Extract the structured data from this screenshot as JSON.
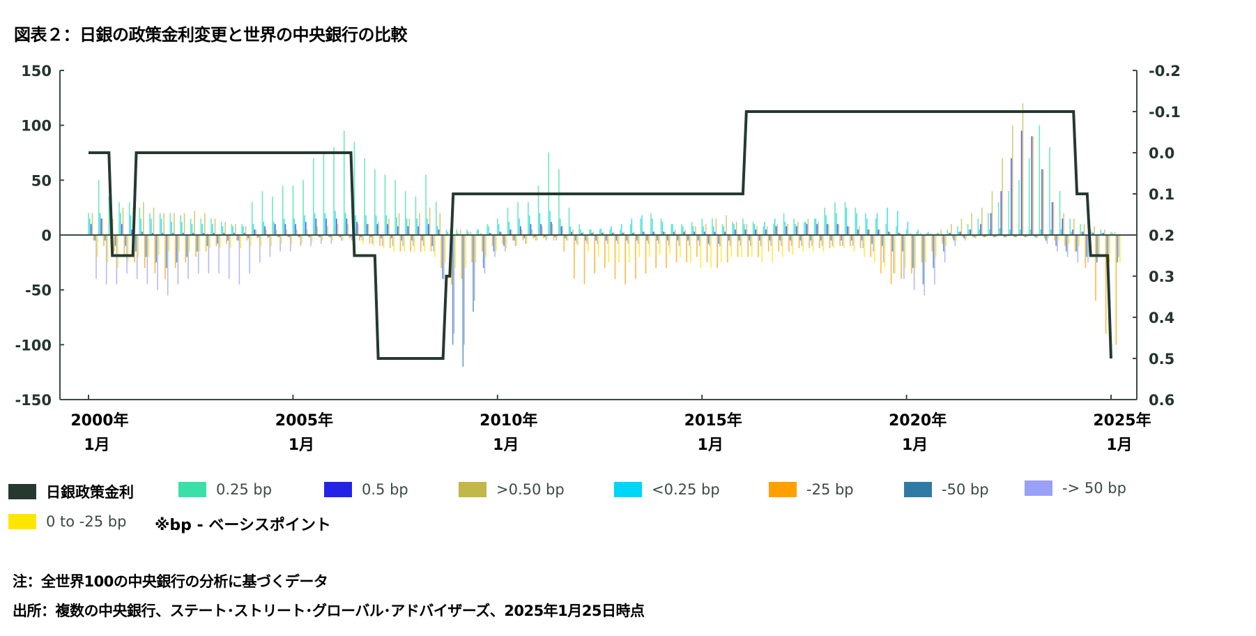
{
  "title": "図表２：日銀の政策金利変更と世界の中央銀行の比較",
  "legend": [
    {
      "label": "日銀政策金利",
      "color": "#25392f"
    },
    {
      "label": "0.25 bp",
      "color": "#3be0a8"
    },
    {
      "label": "0.5 bp",
      "color": "#2323e6"
    },
    {
      "label": ">0.50 bp",
      "color": "#c2b84a"
    },
    {
      "label": "<0.25 bp",
      "color": "#00d6f5"
    },
    {
      "label": "-25 bp",
      "color": "#ffa000"
    },
    {
      "label": "-50 bp",
      "color": "#2f7ba5"
    },
    {
      "label": "-> 50 bp",
      "color": "#9aa0f5"
    },
    {
      "label": "0 to -25 bp",
      "color": "#ffe600"
    }
  ],
  "bp_note": "※bp - ベーシスポイント",
  "notes": [
    "注：全世界100の中央銀行の分析に基づくデータ",
    "出所：複数の中央銀行、ステート･ストリート･グローバル･アドバイザーズ、2025年1月25日時点"
  ],
  "chart_data": {
    "type": "bar",
    "title": "",
    "x_axis": {
      "start": "2000-01",
      "end": "2025-01",
      "tick_labels": [
        [
          "2000年",
          "1月"
        ],
        [
          "2005年",
          "1月"
        ],
        [
          "2010年",
          "1月"
        ],
        [
          "2015年",
          "1月"
        ],
        [
          "2020年",
          "1月"
        ],
        [
          "2025年",
          "1月"
        ]
      ],
      "tick_years": [
        2000,
        2005,
        2010,
        2015,
        2020,
        2025
      ]
    },
    "y_left": {
      "ylim": [
        -150,
        150
      ],
      "ticks": [
        "150",
        "100",
        "50",
        "0",
        "-50",
        "-100",
        "-150"
      ],
      "tick_values": [
        150,
        100,
        50,
        0,
        -50,
        -100,
        -150
      ]
    },
    "y_right": {
      "ylim": [
        -0.2,
        0.6
      ],
      "inverted": true,
      "ticks": [
        "-0.2",
        "-0.1",
        "0.0",
        "0.1",
        "0.2",
        "0.3",
        "0.4",
        "0.5",
        "0.6"
      ],
      "tick_values": [
        -0.2,
        -0.1,
        0.0,
        0.1,
        0.2,
        0.3,
        0.4,
        0.5,
        0.6
      ]
    },
    "grid": false,
    "legend_position": "bottom",
    "bar_period_start": "2000-01",
    "bar_frequency": "quarterly",
    "series": [
      {
        "name": "0.25 bp",
        "color": "#3be0a8",
        "values": [
          20,
          50,
          35,
          30,
          30,
          25,
          20,
          20,
          20,
          18,
          15,
          15,
          15,
          12,
          10,
          10,
          30,
          40,
          35,
          45,
          45,
          50,
          70,
          75,
          80,
          95,
          85,
          70,
          60,
          55,
          50,
          40,
          35,
          55,
          30,
          5,
          5,
          5,
          5,
          10,
          15,
          25,
          30,
          30,
          45,
          75,
          60,
          25,
          10,
          5,
          5,
          5,
          5,
          10,
          15,
          20,
          15,
          10,
          10,
          12,
          15,
          15,
          10,
          12,
          15,
          12,
          8,
          10,
          20,
          15,
          12,
          15,
          25,
          30,
          30,
          25,
          20,
          15,
          10,
          8,
          5,
          3,
          2,
          2,
          5,
          8,
          10,
          15,
          20,
          30,
          40,
          50,
          70,
          100,
          80,
          40,
          15,
          10,
          5,
          5,
          3
        ]
      },
      {
        "name": "<0.25 bp",
        "color": "#00d6f5",
        "values": [
          15,
          20,
          20,
          20,
          18,
          15,
          15,
          15,
          12,
          12,
          10,
          10,
          10,
          8,
          8,
          8,
          10,
          12,
          12,
          15,
          15,
          18,
          20,
          20,
          22,
          20,
          18,
          18,
          18,
          18,
          16,
          15,
          15,
          15,
          8,
          3,
          2,
          3,
          5,
          8,
          10,
          12,
          15,
          18,
          20,
          22,
          15,
          8,
          5,
          5,
          6,
          8,
          10,
          15,
          18,
          15,
          12,
          10,
          8,
          8,
          8,
          8,
          8,
          10,
          10,
          10,
          12,
          15,
          12,
          10,
          12,
          15,
          18,
          20,
          25,
          20,
          15,
          20,
          25,
          22,
          12,
          5,
          3,
          2,
          2,
          3,
          5,
          5,
          5,
          6,
          5,
          5,
          5,
          5,
          5,
          5,
          3,
          3,
          3,
          2,
          2
        ]
      },
      {
        "name": "0.5 bp",
        "color": "#2323e6",
        "values": [
          10,
          15,
          15,
          10,
          5,
          3,
          2,
          2,
          2,
          2,
          2,
          2,
          2,
          2,
          2,
          2,
          5,
          8,
          10,
          10,
          10,
          12,
          15,
          15,
          15,
          15,
          12,
          10,
          10,
          10,
          8,
          8,
          8,
          10,
          5,
          0,
          0,
          0,
          0,
          2,
          3,
          5,
          8,
          10,
          10,
          12,
          8,
          3,
          2,
          2,
          2,
          2,
          2,
          2,
          3,
          3,
          3,
          3,
          3,
          3,
          3,
          3,
          3,
          5,
          5,
          5,
          5,
          8,
          8,
          8,
          10,
          10,
          10,
          10,
          8,
          5,
          5,
          5,
          3,
          2,
          0,
          0,
          0,
          0,
          2,
          3,
          5,
          10,
          20,
          40,
          70,
          95,
          90,
          60,
          30,
          15,
          5,
          3,
          2,
          2,
          0
        ]
      },
      {
        "name": ">0.50 bp",
        "color": "#c2b84a",
        "values": [
          20,
          15,
          15,
          25,
          25,
          30,
          25,
          20,
          20,
          20,
          22,
          20,
          15,
          12,
          10,
          8,
          5,
          5,
          5,
          5,
          5,
          5,
          8,
          8,
          10,
          10,
          10,
          10,
          12,
          15,
          20,
          15,
          20,
          25,
          20,
          5,
          5,
          3,
          2,
          2,
          3,
          5,
          5,
          5,
          8,
          10,
          8,
          5,
          3,
          3,
          3,
          3,
          3,
          3,
          3,
          3,
          3,
          5,
          5,
          8,
          10,
          15,
          18,
          12,
          10,
          8,
          8,
          10,
          10,
          12,
          15,
          12,
          10,
          10,
          8,
          8,
          5,
          5,
          3,
          2,
          2,
          2,
          2,
          5,
          10,
          15,
          20,
          25,
          40,
          70,
          100,
          120,
          90,
          60,
          30,
          20,
          15,
          10,
          8,
          5,
          3
        ]
      },
      {
        "name": "-25 bp",
        "color": "#ffa000",
        "values": [
          -5,
          -10,
          -15,
          -20,
          -25,
          -30,
          -35,
          -40,
          -30,
          -25,
          -20,
          -15,
          -10,
          -8,
          -5,
          -5,
          -3,
          -3,
          -2,
          -2,
          -2,
          -2,
          -2,
          -2,
          -2,
          -3,
          -5,
          -8,
          -10,
          -12,
          -15,
          -15,
          -15,
          -15,
          -30,
          -45,
          -40,
          -25,
          -15,
          -10,
          -8,
          -5,
          -5,
          -3,
          -3,
          -5,
          -15,
          -40,
          -45,
          -35,
          -30,
          -40,
          -45,
          -40,
          -35,
          -30,
          -30,
          -25,
          -25,
          -20,
          -25,
          -30,
          -25,
          -20,
          -20,
          -20,
          -15,
          -15,
          -15,
          -12,
          -12,
          -12,
          -12,
          -10,
          -10,
          -12,
          -20,
          -35,
          -45,
          -40,
          -35,
          -25,
          -15,
          -8,
          -3,
          -2,
          -2,
          -2,
          -2,
          -2,
          -2,
          -2,
          -2,
          -3,
          -5,
          -10,
          -15,
          -30,
          -60,
          -90,
          -100
        ]
      },
      {
        "name": "-50 bp",
        "color": "#2f7ba5",
        "values": [
          -5,
          -5,
          -10,
          -10,
          -15,
          -20,
          -25,
          -30,
          -25,
          -20,
          -15,
          -10,
          -8,
          -5,
          -5,
          -3,
          -2,
          -2,
          -2,
          -2,
          -2,
          -2,
          -2,
          -2,
          -2,
          -2,
          -2,
          -2,
          -3,
          -3,
          -5,
          -5,
          -5,
          -10,
          -40,
          -100,
          -120,
          -70,
          -30,
          -15,
          -10,
          -5,
          -3,
          -2,
          -2,
          -2,
          -3,
          -5,
          -5,
          -5,
          -5,
          -5,
          -5,
          -5,
          -5,
          -5,
          -5,
          -5,
          -5,
          -5,
          -8,
          -8,
          -5,
          -5,
          -5,
          -5,
          -5,
          -5,
          -5,
          -5,
          -5,
          -5,
          -5,
          -5,
          -5,
          -5,
          -8,
          -10,
          -15,
          -15,
          -30,
          -45,
          -30,
          -15,
          -5,
          -3,
          -2,
          -2,
          -2,
          -2,
          -2,
          -2,
          -2,
          -5,
          -10,
          -15,
          -15,
          -20,
          -25,
          -25,
          -25
        ]
      },
      {
        "name": "-> 50 bp",
        "color": "#9aa0f5",
        "values": [
          -40,
          -45,
          -45,
          -35,
          -40,
          -45,
          -50,
          -55,
          -45,
          -40,
          -35,
          -35,
          -35,
          -40,
          -45,
          -35,
          -25,
          -20,
          -15,
          -15,
          -10,
          -10,
          -8,
          -8,
          -5,
          -5,
          -5,
          -8,
          -10,
          -10,
          -10,
          -10,
          -10,
          -15,
          -40,
          -90,
          -100,
          -60,
          -35,
          -20,
          -15,
          -10,
          -8,
          -5,
          -5,
          -5,
          -5,
          -8,
          -8,
          -8,
          -8,
          -8,
          -8,
          -8,
          -8,
          -8,
          -10,
          -10,
          -10,
          -10,
          -10,
          -10,
          -10,
          -10,
          -10,
          -10,
          -10,
          -10,
          -10,
          -10,
          -10,
          -10,
          -10,
          -10,
          -10,
          -12,
          -15,
          -25,
          -35,
          -40,
          -50,
          -55,
          -45,
          -25,
          -10,
          -5,
          -3,
          -2,
          -2,
          -2,
          -2,
          -2,
          -3,
          -8,
          -15,
          -20,
          -25,
          -25,
          -20,
          -20,
          -20
        ]
      },
      {
        "name": "0 to -25 bp",
        "color": "#ffe600",
        "values": [
          -20,
          -25,
          -30,
          -25,
          -20,
          -20,
          -18,
          -15,
          -15,
          -15,
          -15,
          -12,
          -12,
          -12,
          -12,
          -10,
          -10,
          -10,
          -8,
          -8,
          -8,
          -6,
          -5,
          -5,
          -5,
          -5,
          -8,
          -10,
          -12,
          -15,
          -15,
          -15,
          -15,
          -20,
          -25,
          -30,
          -30,
          -25,
          -20,
          -15,
          -12,
          -10,
          -8,
          -5,
          -3,
          -3,
          -5,
          -10,
          -15,
          -20,
          -25,
          -25,
          -25,
          -20,
          -20,
          -18,
          -18,
          -20,
          -25,
          -30,
          -30,
          -25,
          -20,
          -20,
          -20,
          -25,
          -25,
          -20,
          -18,
          -15,
          -15,
          -15,
          -12,
          -12,
          -15,
          -20,
          -25,
          -30,
          -35,
          -30,
          -30,
          -25,
          -20,
          -10,
          -5,
          -3,
          -2,
          -2,
          -2,
          -2,
          -2,
          -2,
          -2,
          -3,
          -5,
          -8,
          -10,
          -15,
          -20,
          -25,
          -25
        ]
      }
    ],
    "line": {
      "name": "日銀政策金利",
      "color": "#25392f",
      "axis": "right",
      "steps": [
        [
          "2000-01",
          0.0
        ],
        [
          "2000-08",
          0.25
        ],
        [
          "2001-03",
          0.0
        ],
        [
          "2006-07",
          0.25
        ],
        [
          "2007-02",
          0.5
        ],
        [
          "2008-10",
          0.3
        ],
        [
          "2008-12",
          0.1
        ],
        [
          "2016-02",
          -0.1
        ],
        [
          "2024-03",
          0.1
        ],
        [
          "2024-07",
          0.25
        ],
        [
          "2025-01",
          0.5
        ]
      ]
    }
  }
}
